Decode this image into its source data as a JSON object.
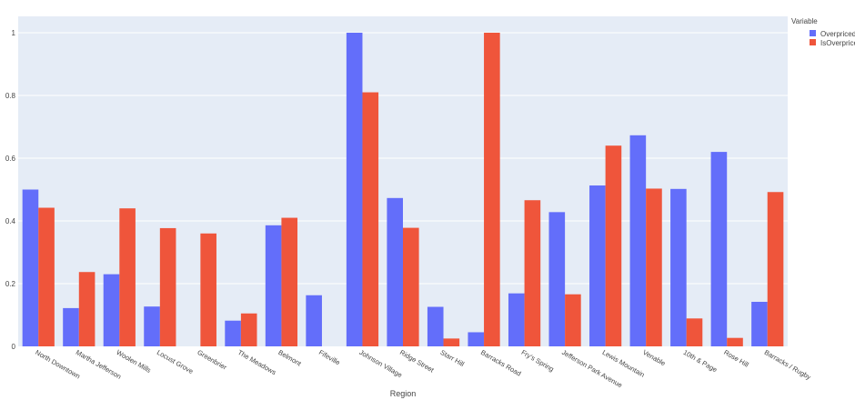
{
  "chart_data": {
    "type": "bar",
    "barmode": "group",
    "categories": [
      "North Downtown",
      "Martha Jefferson",
      "Woolen Mills",
      "Locust Grove",
      "Greenbrier",
      "The Meadows",
      "Belmont",
      "Fifeville",
      "Johnson Village",
      "Ridge Street",
      "Starr Hill",
      "Barracks Road",
      "Fry's Spring",
      "Jefferson Park Avenue",
      "Lewis Mountain",
      "Venable",
      "10th & Page",
      "Rose Hill",
      "Barracks / Rugby"
    ],
    "series": [
      {
        "name": "OverpricedI",
        "color": "#636efa",
        "values": [
          0.5,
          0.122,
          0.23,
          0.127,
          0,
          0.082,
          0.386,
          0.163,
          1.0,
          0.473,
          0.126,
          0.045,
          0.169,
          0.428,
          0.513,
          0.673,
          0.502,
          0.62,
          0.142
        ]
      },
      {
        "name": "IsOverprice",
        "color": "#ef553b",
        "values": [
          0.442,
          0.237,
          0.44,
          0.377,
          0.36,
          0.105,
          0.41,
          0,
          0.81,
          0.378,
          0.025,
          1.0,
          0.466,
          0.166,
          0.64,
          0.503,
          0.089,
          0.027,
          0.492
        ]
      }
    ],
    "title": "",
    "xlabel": "Region",
    "ylabel": "",
    "ylim": [
      0,
      1.0
    ],
    "yticks": [
      0,
      0.2,
      0.4,
      0.6,
      0.8,
      1
    ],
    "ytick_labels": [
      "0",
      "0.2",
      "0.4",
      "0.6",
      "0.8",
      "1"
    ],
    "grid": true,
    "background": "#e5ecf6",
    "legend": {
      "title": "Variable",
      "position": "top-right"
    }
  }
}
